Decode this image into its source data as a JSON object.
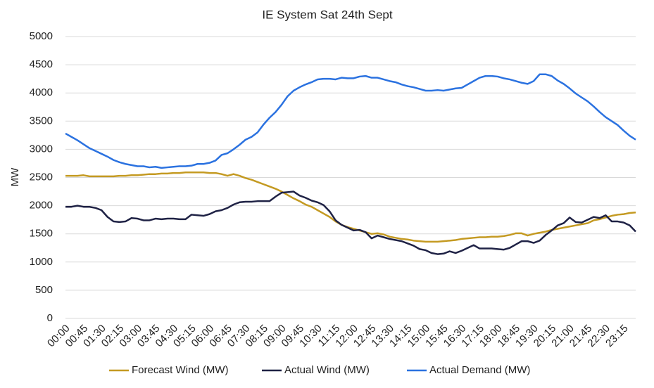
{
  "chart_data": {
    "type": "line",
    "title": "IE System Sat 24th Sept",
    "y_label": "MW",
    "categories": [
      "00:00",
      null,
      null,
      "00:45",
      null,
      null,
      "01:30",
      null,
      null,
      "02:15",
      null,
      null,
      "03:00",
      null,
      null,
      "03:45",
      null,
      null,
      "04:30",
      null,
      null,
      "05:15",
      null,
      null,
      "06:00",
      null,
      null,
      "06:45",
      null,
      null,
      "07:30",
      null,
      null,
      "08:15",
      null,
      null,
      "09:00",
      null,
      null,
      "09:45",
      null,
      null,
      "10:30",
      null,
      null,
      "11:15",
      null,
      null,
      "12:00",
      null,
      null,
      "12:45",
      null,
      null,
      "13:30",
      null,
      null,
      "14:15",
      null,
      null,
      "15:00",
      null,
      null,
      "15:45",
      null,
      null,
      "16:30",
      null,
      null,
      "17:15",
      null,
      null,
      "18:00",
      null,
      null,
      "18:45",
      null,
      null,
      "19:30",
      null,
      null,
      "20:15",
      null,
      null,
      "21:00",
      null,
      null,
      "21:45",
      null,
      null,
      "22:30",
      null,
      null,
      "23:15",
      null,
      null
    ],
    "series": [
      {
        "name": "Forecast Wind (MW)",
        "color": "#c49a22",
        "values": [
          2530,
          2530,
          2530,
          2540,
          2520,
          2520,
          2520,
          2520,
          2520,
          2530,
          2530,
          2540,
          2540,
          2550,
          2560,
          2560,
          2570,
          2570,
          2580,
          2580,
          2590,
          2590,
          2590,
          2590,
          2580,
          2580,
          2560,
          2530,
          2560,
          2530,
          2490,
          2460,
          2420,
          2380,
          2340,
          2300,
          2250,
          2190,
          2130,
          2080,
          2020,
          1980,
          1920,
          1860,
          1800,
          1720,
          1660,
          1620,
          1590,
          1560,
          1530,
          1500,
          1510,
          1490,
          1450,
          1430,
          1410,
          1400,
          1380,
          1370,
          1360,
          1360,
          1360,
          1370,
          1380,
          1390,
          1410,
          1420,
          1430,
          1440,
          1440,
          1450,
          1450,
          1460,
          1480,
          1510,
          1510,
          1470,
          1500,
          1520,
          1540,
          1570,
          1590,
          1610,
          1630,
          1650,
          1670,
          1690,
          1740,
          1760,
          1790,
          1820,
          1840,
          1850,
          1870,
          1880
        ]
      },
      {
        "name": "Actual Wind (MW)",
        "color": "#1f2245",
        "values": [
          1980,
          1980,
          2000,
          1980,
          1980,
          1960,
          1920,
          1800,
          1720,
          1710,
          1720,
          1780,
          1770,
          1740,
          1740,
          1770,
          1760,
          1770,
          1770,
          1760,
          1760,
          1840,
          1830,
          1820,
          1850,
          1900,
          1920,
          1960,
          2020,
          2060,
          2070,
          2070,
          2080,
          2080,
          2080,
          2160,
          2230,
          2240,
          2250,
          2180,
          2140,
          2090,
          2060,
          2010,
          1900,
          1740,
          1660,
          1610,
          1560,
          1570,
          1530,
          1420,
          1470,
          1440,
          1410,
          1390,
          1370,
          1330,
          1290,
          1230,
          1210,
          1160,
          1140,
          1150,
          1190,
          1160,
          1200,
          1250,
          1300,
          1240,
          1240,
          1240,
          1230,
          1220,
          1250,
          1310,
          1370,
          1370,
          1340,
          1380,
          1480,
          1560,
          1650,
          1690,
          1790,
          1710,
          1700,
          1750,
          1800,
          1780,
          1830,
          1720,
          1720,
          1700,
          1650,
          1540
        ]
      },
      {
        "name": "Actual Demand (MW)",
        "color": "#2b72e0",
        "values": [
          3280,
          3220,
          3160,
          3090,
          3020,
          2970,
          2920,
          2870,
          2810,
          2770,
          2740,
          2720,
          2700,
          2700,
          2680,
          2690,
          2670,
          2680,
          2690,
          2700,
          2700,
          2710,
          2740,
          2740,
          2760,
          2800,
          2900,
          2930,
          3000,
          3080,
          3170,
          3220,
          3300,
          3440,
          3560,
          3660,
          3790,
          3940,
          4040,
          4100,
          4150,
          4190,
          4240,
          4250,
          4250,
          4240,
          4270,
          4260,
          4260,
          4290,
          4300,
          4270,
          4270,
          4240,
          4210,
          4190,
          4150,
          4120,
          4100,
          4070,
          4040,
          4040,
          4050,
          4040,
          4060,
          4080,
          4090,
          4150,
          4210,
          4270,
          4300,
          4300,
          4290,
          4260,
          4240,
          4210,
          4180,
          4160,
          4210,
          4330,
          4330,
          4300,
          4220,
          4160,
          4080,
          3990,
          3920,
          3850,
          3760,
          3660,
          3570,
          3500,
          3430,
          3330,
          3240,
          3170
        ]
      }
    ],
    "ylim": [
      0,
      5000
    ],
    "yticks": [
      0,
      500,
      1000,
      1500,
      2000,
      2500,
      3000,
      3500,
      4000,
      4500,
      5000
    ],
    "grid": true,
    "legend": "bottom"
  }
}
